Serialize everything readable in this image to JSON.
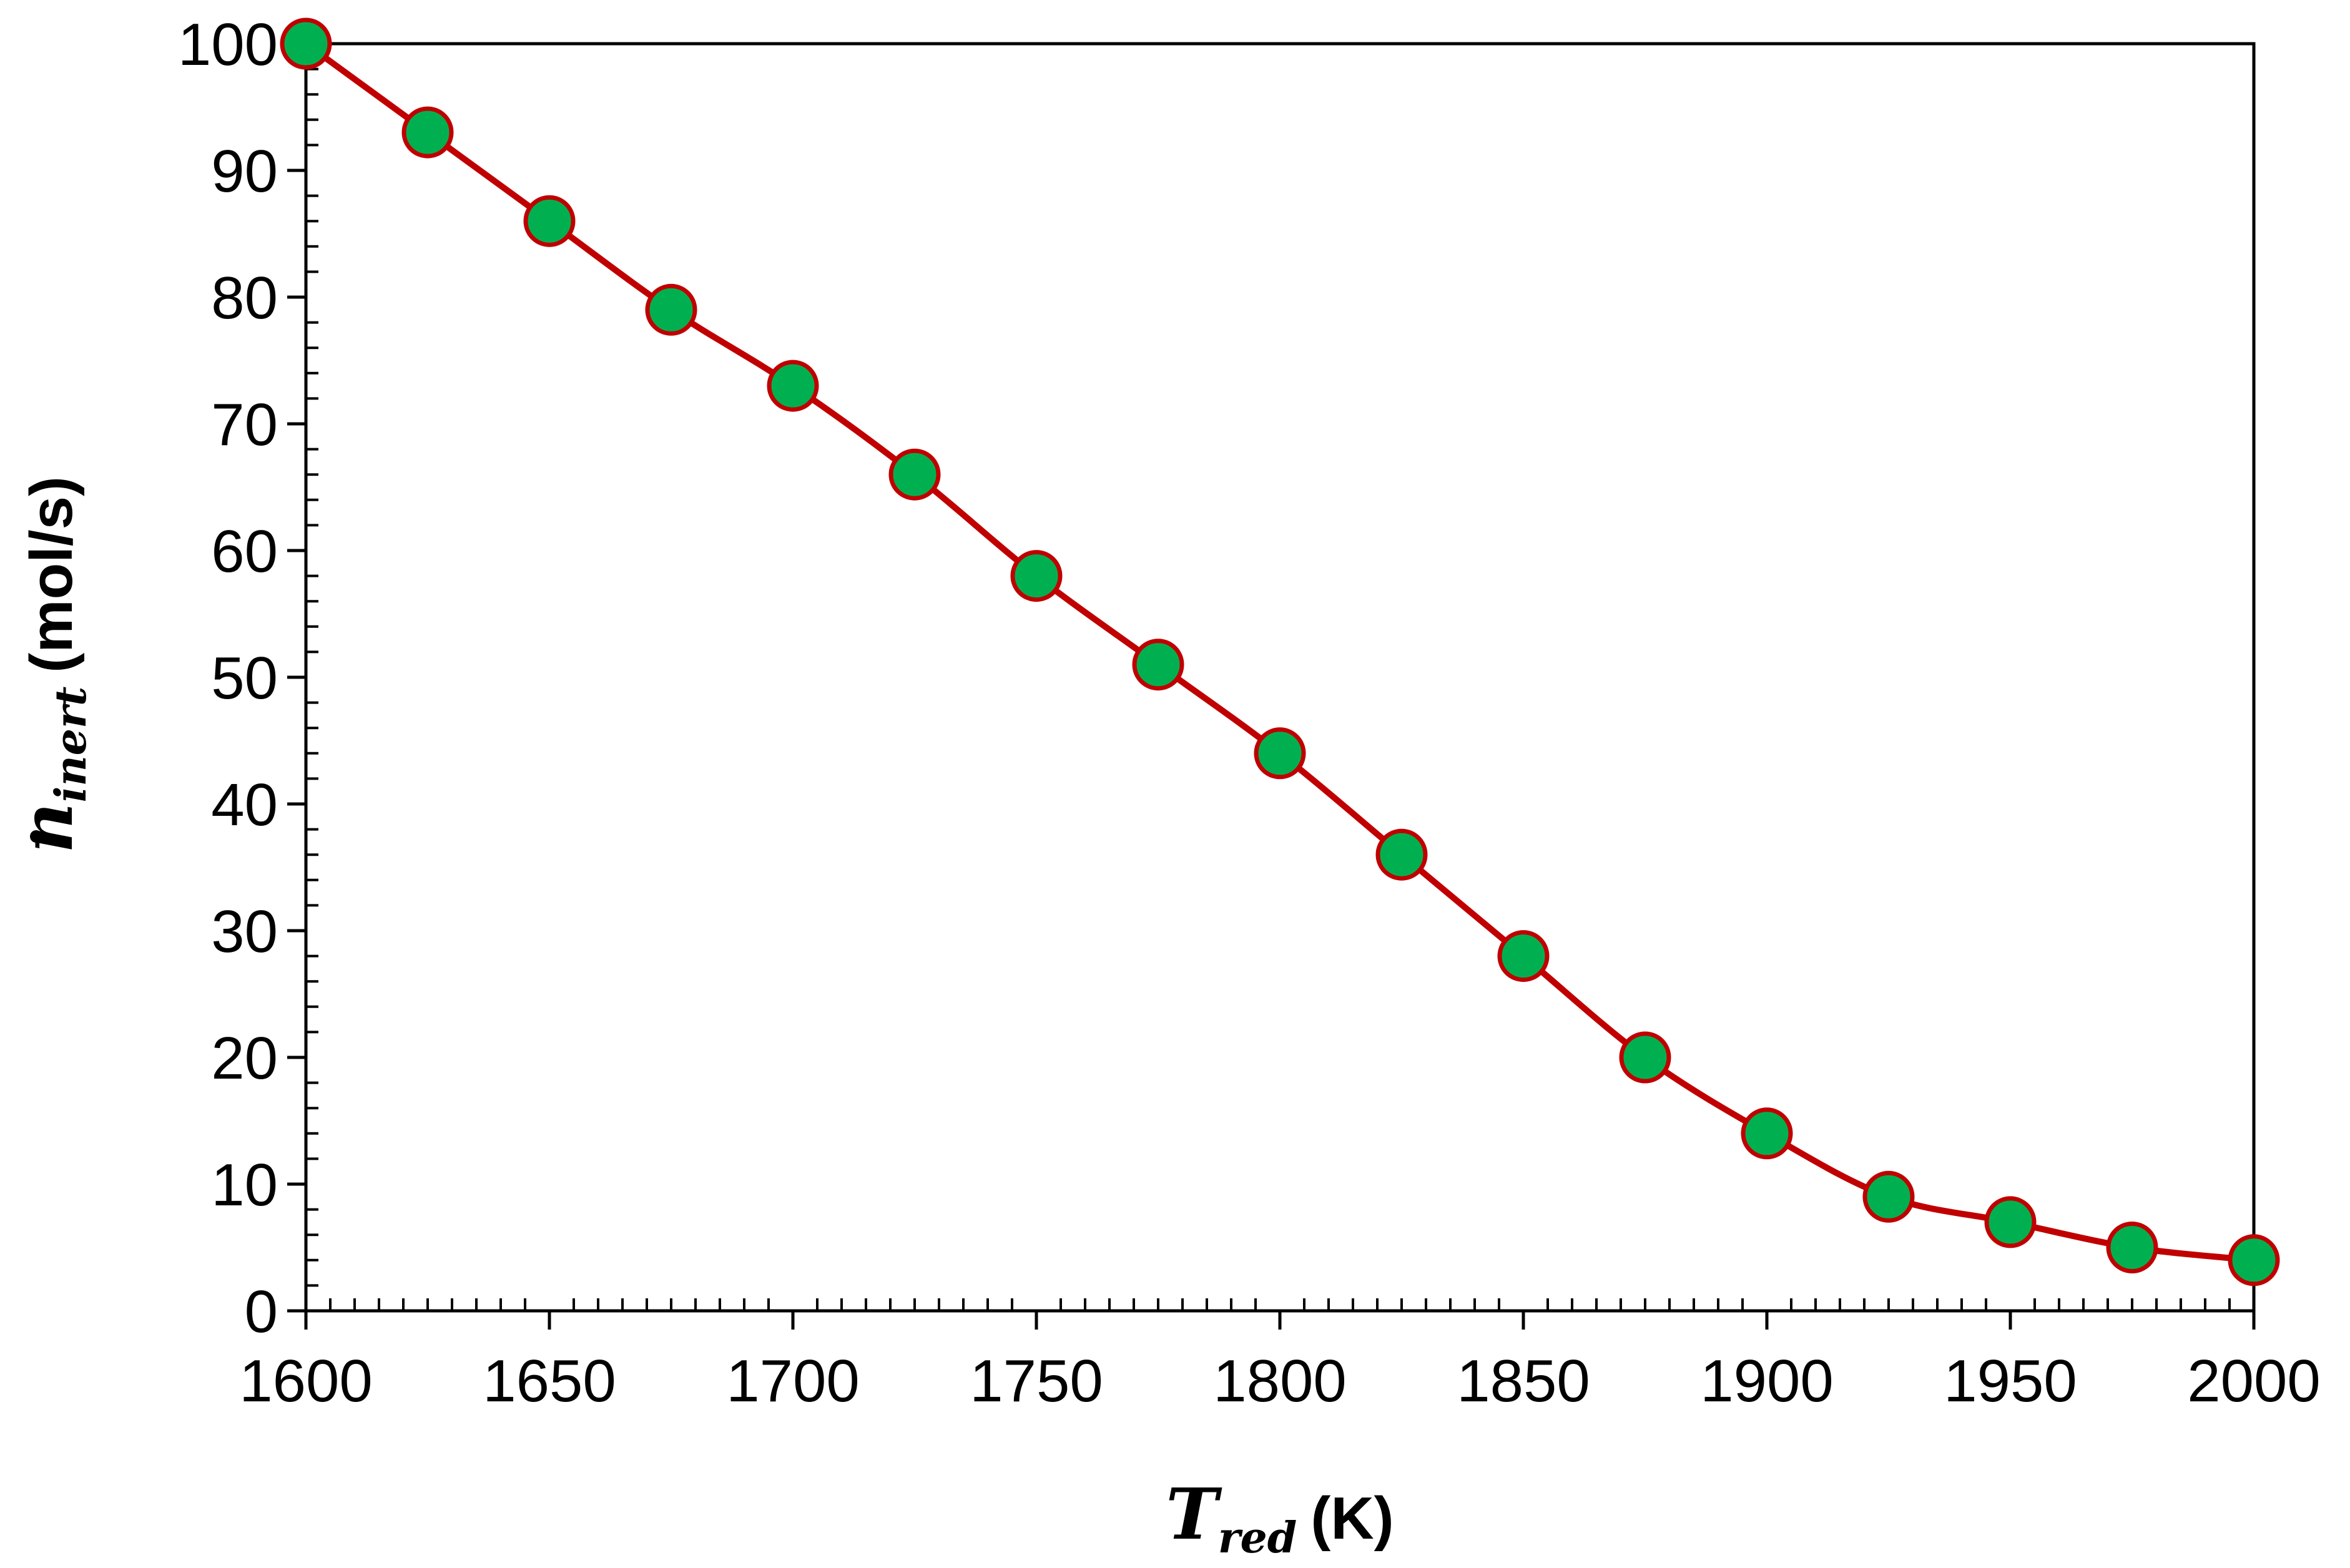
{
  "chart_data": {
    "type": "line",
    "title": "",
    "x": [
      1600,
      1625,
      1650,
      1675,
      1700,
      1725,
      1750,
      1775,
      1800,
      1825,
      1850,
      1875,
      1900,
      1925,
      1950,
      1975,
      2000
    ],
    "series": [
      {
        "name": "n_inert",
        "values": [
          100,
          93,
          86,
          79,
          73,
          66,
          58,
          51,
          44,
          36,
          28,
          20,
          14,
          9,
          7,
          5,
          4
        ]
      }
    ],
    "xlim": [
      1600,
      2000
    ],
    "ylim": [
      0,
      100
    ],
    "xticks": [
      1600,
      1650,
      1700,
      1750,
      1800,
      1850,
      1900,
      1950,
      2000
    ],
    "yticks": [
      0,
      10,
      20,
      30,
      40,
      50,
      60,
      70,
      80,
      90,
      100
    ],
    "xlabel": {
      "symbol": "T",
      "subscript": "red",
      "unit": "(K)"
    },
    "ylabel": {
      "symbol": "n",
      "subscript": "inert",
      "unit": "(mol/s)"
    },
    "grid": false,
    "line_color": "#c00000",
    "marker_color": "#00b050",
    "marker_edge_color": "#c00000"
  }
}
